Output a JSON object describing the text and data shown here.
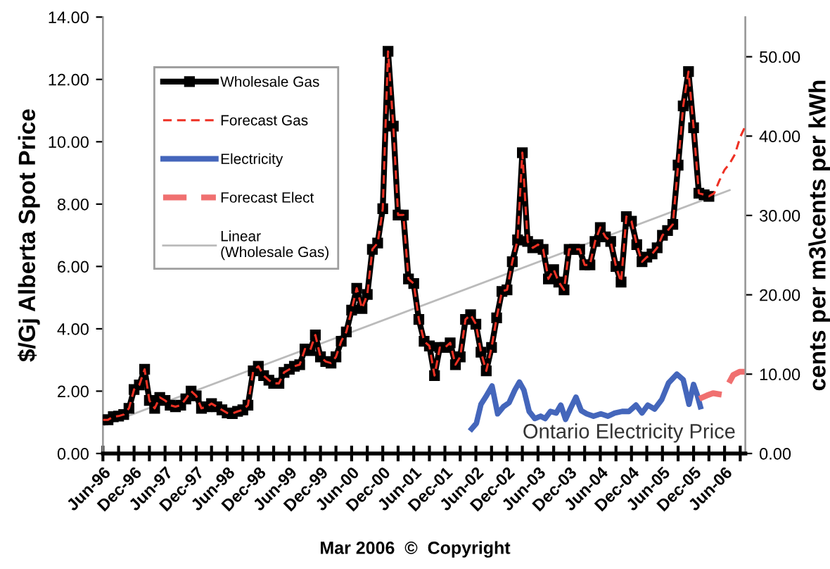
{
  "chart_data": {
    "type": "line",
    "ylabel": "$/Gj Alberta Spot Price",
    "y2label": "cents per m3\\cents per kWh",
    "x": [
      "1996-06",
      "1996-07",
      "1996-08",
      "1996-09",
      "1996-10",
      "1996-11",
      "1996-12",
      "1997-01",
      "1997-02",
      "1997-03",
      "1997-04",
      "1997-05",
      "1997-06",
      "1997-07",
      "1997-08",
      "1997-09",
      "1997-10",
      "1997-11",
      "1997-12",
      "1998-01",
      "1998-02",
      "1998-03",
      "1998-04",
      "1998-05",
      "1998-06",
      "1998-07",
      "1998-08",
      "1998-09",
      "1998-10",
      "1998-11",
      "1998-12",
      "1999-01",
      "1999-02",
      "1999-03",
      "1999-04",
      "1999-05",
      "1999-06",
      "1999-07",
      "1999-08",
      "1999-09",
      "1999-10",
      "1999-11",
      "1999-12",
      "2000-01",
      "2000-02",
      "2000-03",
      "2000-04",
      "2000-05",
      "2000-06",
      "2000-07",
      "2000-08",
      "2000-09",
      "2000-10",
      "2000-11",
      "2000-12",
      "2001-01",
      "2001-02",
      "2001-03",
      "2001-04",
      "2001-05",
      "2001-06",
      "2001-07",
      "2001-08",
      "2001-09",
      "2001-10",
      "2001-11",
      "2001-12",
      "2002-01",
      "2002-02",
      "2002-03",
      "2002-04",
      "2002-05",
      "2002-06",
      "2002-07",
      "2002-08",
      "2002-09",
      "2002-10",
      "2002-11",
      "2002-12",
      "2003-01",
      "2003-02",
      "2003-03",
      "2003-04",
      "2003-05",
      "2003-06",
      "2003-07",
      "2003-08",
      "2003-09",
      "2003-10",
      "2003-11",
      "2003-12",
      "2004-01",
      "2004-02",
      "2004-03",
      "2004-04",
      "2004-05",
      "2004-06",
      "2004-07",
      "2004-08",
      "2004-09",
      "2004-10",
      "2004-11",
      "2004-12",
      "2005-01",
      "2005-02",
      "2005-03",
      "2005-04",
      "2005-05",
      "2005-06",
      "2005-07",
      "2005-08",
      "2005-09",
      "2005-10",
      "2005-11",
      "2005-12",
      "2006-01",
      "2006-02",
      "2006-03",
      "2006-04",
      "2006-05",
      "2006-06",
      "2006-07",
      "2006-08",
      "2006-09",
      "2006-10"
    ],
    "series": [
      {
        "name": "Wholesale Gas",
        "color": "#000000",
        "marker": "square",
        "line_style": "solid",
        "values": [
          1.08,
          1.08,
          1.18,
          1.2,
          1.25,
          1.45,
          2.05,
          2.2,
          2.7,
          1.7,
          1.45,
          1.8,
          1.7,
          1.55,
          1.5,
          1.55,
          1.75,
          2.0,
          1.85,
          1.45,
          1.5,
          1.6,
          1.5,
          1.4,
          1.3,
          1.28,
          1.35,
          1.4,
          1.55,
          2.65,
          2.8,
          2.5,
          2.35,
          2.25,
          2.25,
          2.6,
          2.7,
          2.8,
          2.85,
          3.35,
          3.3,
          3.8,
          3.1,
          2.95,
          2.9,
          3.1,
          3.6,
          3.9,
          4.6,
          5.3,
          4.65,
          5.1,
          6.55,
          6.75,
          7.85,
          12.9,
          10.5,
          7.65,
          7.65,
          5.6,
          5.45,
          4.3,
          3.6,
          3.45,
          2.5,
          3.4,
          3.4,
          3.55,
          2.85,
          3.1,
          4.3,
          4.45,
          4.15,
          3.25,
          2.65,
          3.4,
          4.35,
          5.2,
          5.25,
          6.15,
          6.85,
          9.65,
          6.8,
          6.6,
          6.7,
          6.55,
          5.6,
          5.9,
          5.5,
          5.25,
          6.55,
          6.55,
          6.55,
          6.05,
          6.05,
          6.8,
          7.25,
          6.95,
          6.8,
          6.0,
          5.5,
          7.6,
          7.45,
          6.7,
          6.15,
          6.3,
          6.4,
          6.6,
          7.0,
          7.15,
          7.35,
          9.25,
          11.15,
          12.25,
          10.45,
          8.35,
          8.3,
          8.25,
          null,
          null,
          null,
          null,
          null,
          null,
          null
        ]
      },
      {
        "name": "Forecast Gas",
        "color": "#ee3124",
        "marker": "none",
        "line_style": "dashed",
        "values": [
          1.08,
          1.08,
          1.18,
          1.2,
          1.25,
          1.45,
          2.05,
          2.2,
          2.7,
          1.7,
          1.45,
          1.8,
          1.7,
          1.55,
          1.5,
          1.55,
          1.75,
          2.0,
          1.85,
          1.45,
          1.5,
          1.6,
          1.5,
          1.4,
          1.3,
          1.28,
          1.35,
          1.4,
          1.55,
          2.65,
          2.8,
          2.5,
          2.35,
          2.25,
          2.25,
          2.6,
          2.7,
          2.8,
          2.85,
          3.35,
          3.3,
          3.8,
          3.1,
          2.95,
          2.9,
          3.1,
          3.6,
          3.9,
          4.6,
          5.3,
          4.65,
          5.1,
          6.55,
          6.75,
          7.85,
          12.9,
          10.5,
          7.65,
          7.65,
          5.6,
          5.45,
          4.3,
          3.6,
          3.45,
          2.5,
          3.4,
          3.4,
          3.55,
          2.85,
          3.1,
          4.3,
          4.45,
          4.15,
          3.25,
          2.65,
          3.4,
          4.35,
          5.2,
          5.25,
          6.15,
          6.85,
          9.65,
          6.8,
          6.6,
          6.7,
          6.55,
          5.6,
          5.9,
          5.5,
          5.25,
          6.55,
          6.55,
          6.55,
          6.05,
          6.05,
          6.8,
          7.25,
          6.95,
          6.8,
          6.0,
          5.5,
          7.6,
          7.45,
          6.7,
          6.15,
          6.3,
          6.4,
          6.6,
          7.0,
          7.15,
          7.35,
          9.25,
          11.15,
          12.25,
          10.45,
          8.35,
          8.3,
          8.25,
          8.35,
          8.75,
          9.1,
          9.3,
          9.6,
          10.15,
          10.5
        ]
      },
      {
        "name": "Electricity",
        "color": "#4466bb",
        "axis": "y2",
        "marker": "none",
        "line_style": "solid",
        "x": [
          "2002-05-07",
          "2002-06-04",
          "2002-07-01",
          "2002-07-28",
          "2002-09-04",
          "2002-10-07",
          "2002-11-10",
          "2002-12-13",
          "2003-01-16",
          "2003-02-12",
          "2003-03-10",
          "2003-04-10",
          "2003-05-13",
          "2003-06-16",
          "2003-07-13",
          "2003-08-13",
          "2003-09-16",
          "2003-10-13",
          "2003-11-10",
          "2003-12-07",
          "2004-01-10",
          "2004-02-10",
          "2004-03-13",
          "2004-04-22",
          "2004-06-04",
          "2004-07-16",
          "2004-08-25",
          "2004-10-07",
          "2004-11-16",
          "2004-12-28",
          "2005-02-01",
          "2005-03-07",
          "2005-04-16",
          "2005-05-28",
          "2005-07-07",
          "2005-08-25",
          "2005-10-01",
          "2005-11-04",
          "2005-12-01",
          "2005-12-22",
          "2006-01-10"
        ],
        "values": [
          3.1,
          3.8,
          6.2,
          7.1,
          8.5,
          5.0,
          5.9,
          6.4,
          8.0,
          9.0,
          8.0,
          5.3,
          4.4,
          4.7,
          4.4,
          5.3,
          5.1,
          6.1,
          4.3,
          5.6,
          7.1,
          5.4,
          5.0,
          4.7,
          5.0,
          4.7,
          5.1,
          5.3,
          5.3,
          6.1,
          5.1,
          6.1,
          5.6,
          6.8,
          8.9,
          10.0,
          9.3,
          6.2,
          8.7,
          7.4,
          5.9
        ]
      },
      {
        "name": "Forecast Elect",
        "color": "#f07070",
        "axis": "y2",
        "marker": "none",
        "line_style": "dashed",
        "x": [
          "2006-01-04",
          "2006-02-16",
          "2006-03-25",
          "2006-05-22",
          "2006-06-19",
          "2006-07-22",
          "2006-08-28",
          "2006-10-01"
        ],
        "values": [
          6.9,
          7.3,
          7.6,
          7.4,
          8.6,
          9.9,
          10.3,
          10.3
        ]
      },
      {
        "name": "Linear\n(Wholesale Gas)",
        "color": "#bbbbbb",
        "marker": "none",
        "line_style": "solid",
        "x": [
          "1996-06",
          "2006-07"
        ],
        "values": [
          0.9,
          8.45
        ]
      }
    ],
    "xlim": [
      "1996-06",
      "2006-10"
    ],
    "xticks": [
      {
        "value": "1996-06",
        "label": "Jun-96"
      },
      {
        "value": "1996-09",
        "label": null
      },
      {
        "value": "1996-12",
        "label": "Dec-96"
      },
      {
        "value": "1997-03",
        "label": null
      },
      {
        "value": "1997-06",
        "label": "Jun-97"
      },
      {
        "value": "1997-09",
        "label": null
      },
      {
        "value": "1997-12",
        "label": "Dec-97"
      },
      {
        "value": "1998-03",
        "label": null
      },
      {
        "value": "1998-06",
        "label": "Jun-98"
      },
      {
        "value": "1998-09",
        "label": null
      },
      {
        "value": "1998-12",
        "label": "Dec-98"
      },
      {
        "value": "1999-03",
        "label": null
      },
      {
        "value": "1999-06",
        "label": "Jun-99"
      },
      {
        "value": "1999-09",
        "label": null
      },
      {
        "value": "1999-12",
        "label": "Dec-99"
      },
      {
        "value": "2000-03",
        "label": null
      },
      {
        "value": "2000-06",
        "label": "Jun-00"
      },
      {
        "value": "2000-09",
        "label": null
      },
      {
        "value": "2000-12",
        "label": "Dec-00"
      },
      {
        "value": "2001-03",
        "label": null
      },
      {
        "value": "2001-06",
        "label": "Jun-01"
      },
      {
        "value": "2001-09",
        "label": null
      },
      {
        "value": "2001-12",
        "label": "Dec-01"
      },
      {
        "value": "2002-03",
        "label": null
      },
      {
        "value": "2002-06",
        "label": "Jun-02"
      },
      {
        "value": "2002-09",
        "label": null
      },
      {
        "value": "2002-12",
        "label": "Dec-02"
      },
      {
        "value": "2003-03",
        "label": null
      },
      {
        "value": "2003-06",
        "label": "Jun-03"
      },
      {
        "value": "2003-09",
        "label": null
      },
      {
        "value": "2003-12",
        "label": "Dec-03"
      },
      {
        "value": "2004-03",
        "label": null
      },
      {
        "value": "2004-06",
        "label": "Jun-04"
      },
      {
        "value": "2004-09",
        "label": null
      },
      {
        "value": "2004-12",
        "label": "Dec-04"
      },
      {
        "value": "2005-03",
        "label": null
      },
      {
        "value": "2005-06",
        "label": "Jun-05"
      },
      {
        "value": "2005-09",
        "label": null
      },
      {
        "value": "2005-12",
        "label": "Dec-05"
      },
      {
        "value": "2006-03",
        "label": null
      },
      {
        "value": "2006-06",
        "label": "Jun-06"
      },
      {
        "value": "2006-09",
        "label": null
      }
    ],
    "ylim": [
      0,
      14
    ],
    "yticks": [
      {
        "value": 0,
        "label": "0.00"
      },
      {
        "value": 2,
        "label": "2.00"
      },
      {
        "value": 4,
        "label": "4.00"
      },
      {
        "value": 6,
        "label": "6.00"
      },
      {
        "value": 8,
        "label": "8.00"
      },
      {
        "value": 10,
        "label": "10.00"
      },
      {
        "value": 12,
        "label": "12.00"
      },
      {
        "value": 14,
        "label": "14.00"
      }
    ],
    "y2lim": [
      0,
      55
    ],
    "y2ticks": [
      {
        "value": 0,
        "label": "0.00"
      },
      {
        "value": 10,
        "label": "10.00"
      },
      {
        "value": 20,
        "label": "20.00"
      },
      {
        "value": 30,
        "label": "30.00"
      },
      {
        "value": 40,
        "label": "40.00"
      },
      {
        "value": 50,
        "label": "50.00"
      }
    ],
    "grid": false,
    "legend": "top left",
    "annotations": [
      "Ontario Electricity Price",
      "Mar 2006  ©  Copyright"
    ]
  }
}
